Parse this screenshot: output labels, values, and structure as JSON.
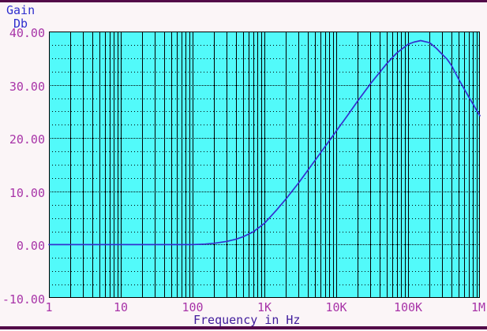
{
  "window": {
    "background": "#FBF5F7",
    "border_color": "#530B49"
  },
  "chart_data": {
    "type": "line",
    "title": "",
    "y_axis_title_lines": [
      "Gain",
      "Db"
    ],
    "xlabel": "Frequency in Hz",
    "ylabel": "Gain (Db)",
    "x_scale": "log",
    "x_range": [
      1,
      1000000
    ],
    "ylim": [
      -10,
      40
    ],
    "y_major_step": 10,
    "y_minor_step": 2.5,
    "grid": {
      "vertical": "solid black lines at each log decade subdivision (2-9) and decade boundaries",
      "horizontal_minor": "sparse dotted black every 2.5 dB",
      "horizontal_major": "dense dotted black every 10 dB"
    },
    "legend": "none",
    "colors": {
      "plot_bg": "#52FAFA",
      "grid": "#000000",
      "curve": "#3430CF",
      "tick_label": "#A834A8",
      "axis_title": "#401C9C",
      "gain_label": "#2E2ECE",
      "window_border": "#530B49"
    },
    "y_axis": {
      "ticks": [
        {
          "label": "40.00",
          "value": 40
        },
        {
          "label": "30.00",
          "value": 30
        },
        {
          "label": "20.00",
          "value": 20
        },
        {
          "label": "10.00",
          "value": 10
        },
        {
          "label": "0.00",
          "value": 0
        },
        {
          "label": "-10.00",
          "value": -10
        }
      ]
    },
    "x_axis": {
      "ticks": [
        {
          "label": "1",
          "value": 1
        },
        {
          "label": "10",
          "value": 10
        },
        {
          "label": "100",
          "value": 100
        },
        {
          "label": "1K",
          "value": 1000
        },
        {
          "label": "10K",
          "value": 10000
        },
        {
          "label": "100K",
          "value": 100000
        },
        {
          "label": "1M",
          "value": 1000000
        }
      ]
    },
    "series": [
      {
        "name": "gain_db",
        "points": [
          [
            1,
            0
          ],
          [
            2,
            0
          ],
          [
            5,
            0
          ],
          [
            10,
            0
          ],
          [
            20,
            0
          ],
          [
            50,
            0
          ],
          [
            100,
            0
          ],
          [
            150,
            0.1
          ],
          [
            200,
            0.25
          ],
          [
            300,
            0.6
          ],
          [
            400,
            1.0
          ],
          [
            500,
            1.45
          ],
          [
            700,
            2.4
          ],
          [
            1000,
            4.0
          ],
          [
            1500,
            6.6
          ],
          [
            2000,
            8.6
          ],
          [
            3000,
            11.6
          ],
          [
            5000,
            15.7
          ],
          [
            7000,
            18.4
          ],
          [
            10000,
            21.3
          ],
          [
            15000,
            24.6
          ],
          [
            20000,
            27.0
          ],
          [
            30000,
            30.2
          ],
          [
            50000,
            33.9
          ],
          [
            70000,
            36.0
          ],
          [
            100000,
            37.6
          ],
          [
            120000,
            38.0
          ],
          [
            150000,
            38.3
          ],
          [
            200000,
            37.9
          ],
          [
            250000,
            36.8
          ],
          [
            300000,
            35.7
          ],
          [
            350000,
            34.8
          ],
          [
            400000,
            33.7
          ],
          [
            450000,
            32.4
          ],
          [
            500000,
            31.2
          ],
          [
            600000,
            29.3
          ],
          [
            700000,
            27.7
          ],
          [
            800000,
            26.4
          ],
          [
            900000,
            25.2
          ],
          [
            1000000,
            24.2
          ]
        ]
      }
    ]
  }
}
